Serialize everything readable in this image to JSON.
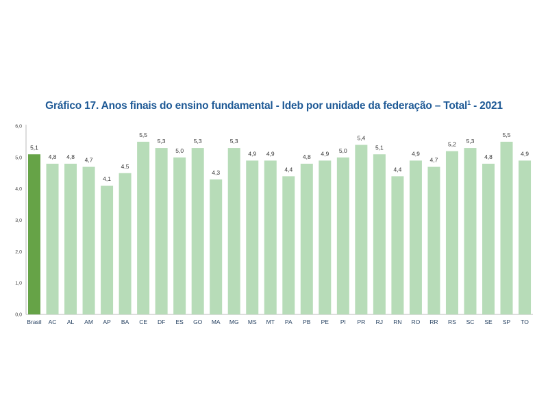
{
  "chart_data": {
    "type": "bar",
    "title": "Gráfico 17. Anos finais do ensino fundamental - Ideb por unidade da federação – Total",
    "title_superscript": "1",
    "title_suffix": " - 2021",
    "xlabel": "",
    "ylabel": "",
    "ylim": [
      0,
      6
    ],
    "yticks": [
      "0,0",
      "1,0",
      "2,0",
      "3,0",
      "4,0",
      "5,0",
      "6,0"
    ],
    "categories": [
      "Brasil",
      "AC",
      "AL",
      "AM",
      "AP",
      "BA",
      "CE",
      "DF",
      "ES",
      "GO",
      "MA",
      "MG",
      "MS",
      "MT",
      "PA",
      "PB",
      "PE",
      "PI",
      "PR",
      "RJ",
      "RN",
      "RO",
      "RR",
      "RS",
      "SC",
      "SE",
      "SP",
      "TO"
    ],
    "values": [
      5.1,
      4.8,
      4.8,
      4.7,
      4.1,
      4.5,
      5.5,
      5.3,
      5.0,
      5.3,
      4.3,
      5.3,
      4.9,
      4.9,
      4.4,
      4.8,
      4.9,
      5.0,
      5.4,
      5.1,
      4.4,
      4.9,
      4.7,
      5.2,
      5.3,
      4.8,
      5.5,
      4.9
    ],
    "value_labels": [
      "5,1",
      "4,8",
      "4,8",
      "4,7",
      "4,1",
      "4,5",
      "5,5",
      "5,3",
      "5,0",
      "5,3",
      "4,3",
      "5,3",
      "4,9",
      "4,9",
      "4,4",
      "4,8",
      "4,9",
      "5,0",
      "5,4",
      "5,1",
      "4,4",
      "4,9",
      "4,7",
      "5,2",
      "5,3",
      "4,8",
      "5,5",
      "4,9"
    ],
    "colors": {
      "highlight": "#66a347",
      "bar": "#b7dcb8",
      "title": "#1f5a96"
    },
    "grid": false,
    "legend": "none"
  }
}
